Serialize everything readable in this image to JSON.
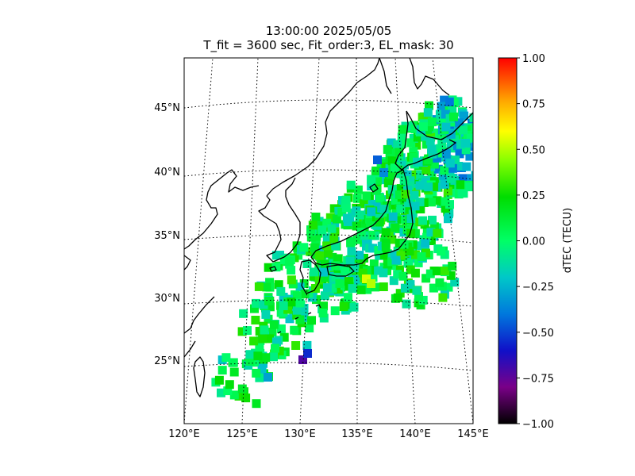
{
  "map": {
    "title_line1": "13:00:00 2025/05/05",
    "title_line2": "T_fit = 3600 sec, Fit_order:3, EL_mask: 30",
    "lon_range": [
      120,
      145
    ],
    "lat_range": [
      20,
      49
    ],
    "lon_ticks": [
      {
        "value": 120,
        "label": "120°E"
      },
      {
        "value": 125,
        "label": "125°E"
      },
      {
        "value": 130,
        "label": "130°E"
      },
      {
        "value": 135,
        "label": "135°E"
      },
      {
        "value": 140,
        "label": "140°E"
      },
      {
        "value": 145,
        "label": "145°E"
      }
    ],
    "lat_ticks": [
      {
        "value": 25,
        "label": "25°N"
      },
      {
        "value": 30,
        "label": "30°N"
      },
      {
        "value": 35,
        "label": "35°N"
      },
      {
        "value": 40,
        "label": "40°N"
      },
      {
        "value": 45,
        "label": "45°N"
      }
    ],
    "gridlines": "dotted",
    "projection": "perspective (lat/lon)",
    "coastline_color": "#000000"
  },
  "colorbar": {
    "label": "dTEC (TECU)",
    "min": -1.0,
    "max": 1.0,
    "colormap": "nipy_spectral",
    "ticks": [
      {
        "value": 1.0,
        "label": "1.00"
      },
      {
        "value": 0.75,
        "label": "0.75"
      },
      {
        "value": 0.5,
        "label": "0.50"
      },
      {
        "value": 0.25,
        "label": "0.25"
      },
      {
        "value": 0.0,
        "label": "0.00"
      },
      {
        "value": -0.25,
        "label": "−0.25"
      },
      {
        "value": -0.5,
        "label": "−0.50"
      },
      {
        "value": -0.75,
        "label": "−0.75"
      },
      {
        "value": -1.0,
        "label": "−1.00"
      }
    ]
  }
}
